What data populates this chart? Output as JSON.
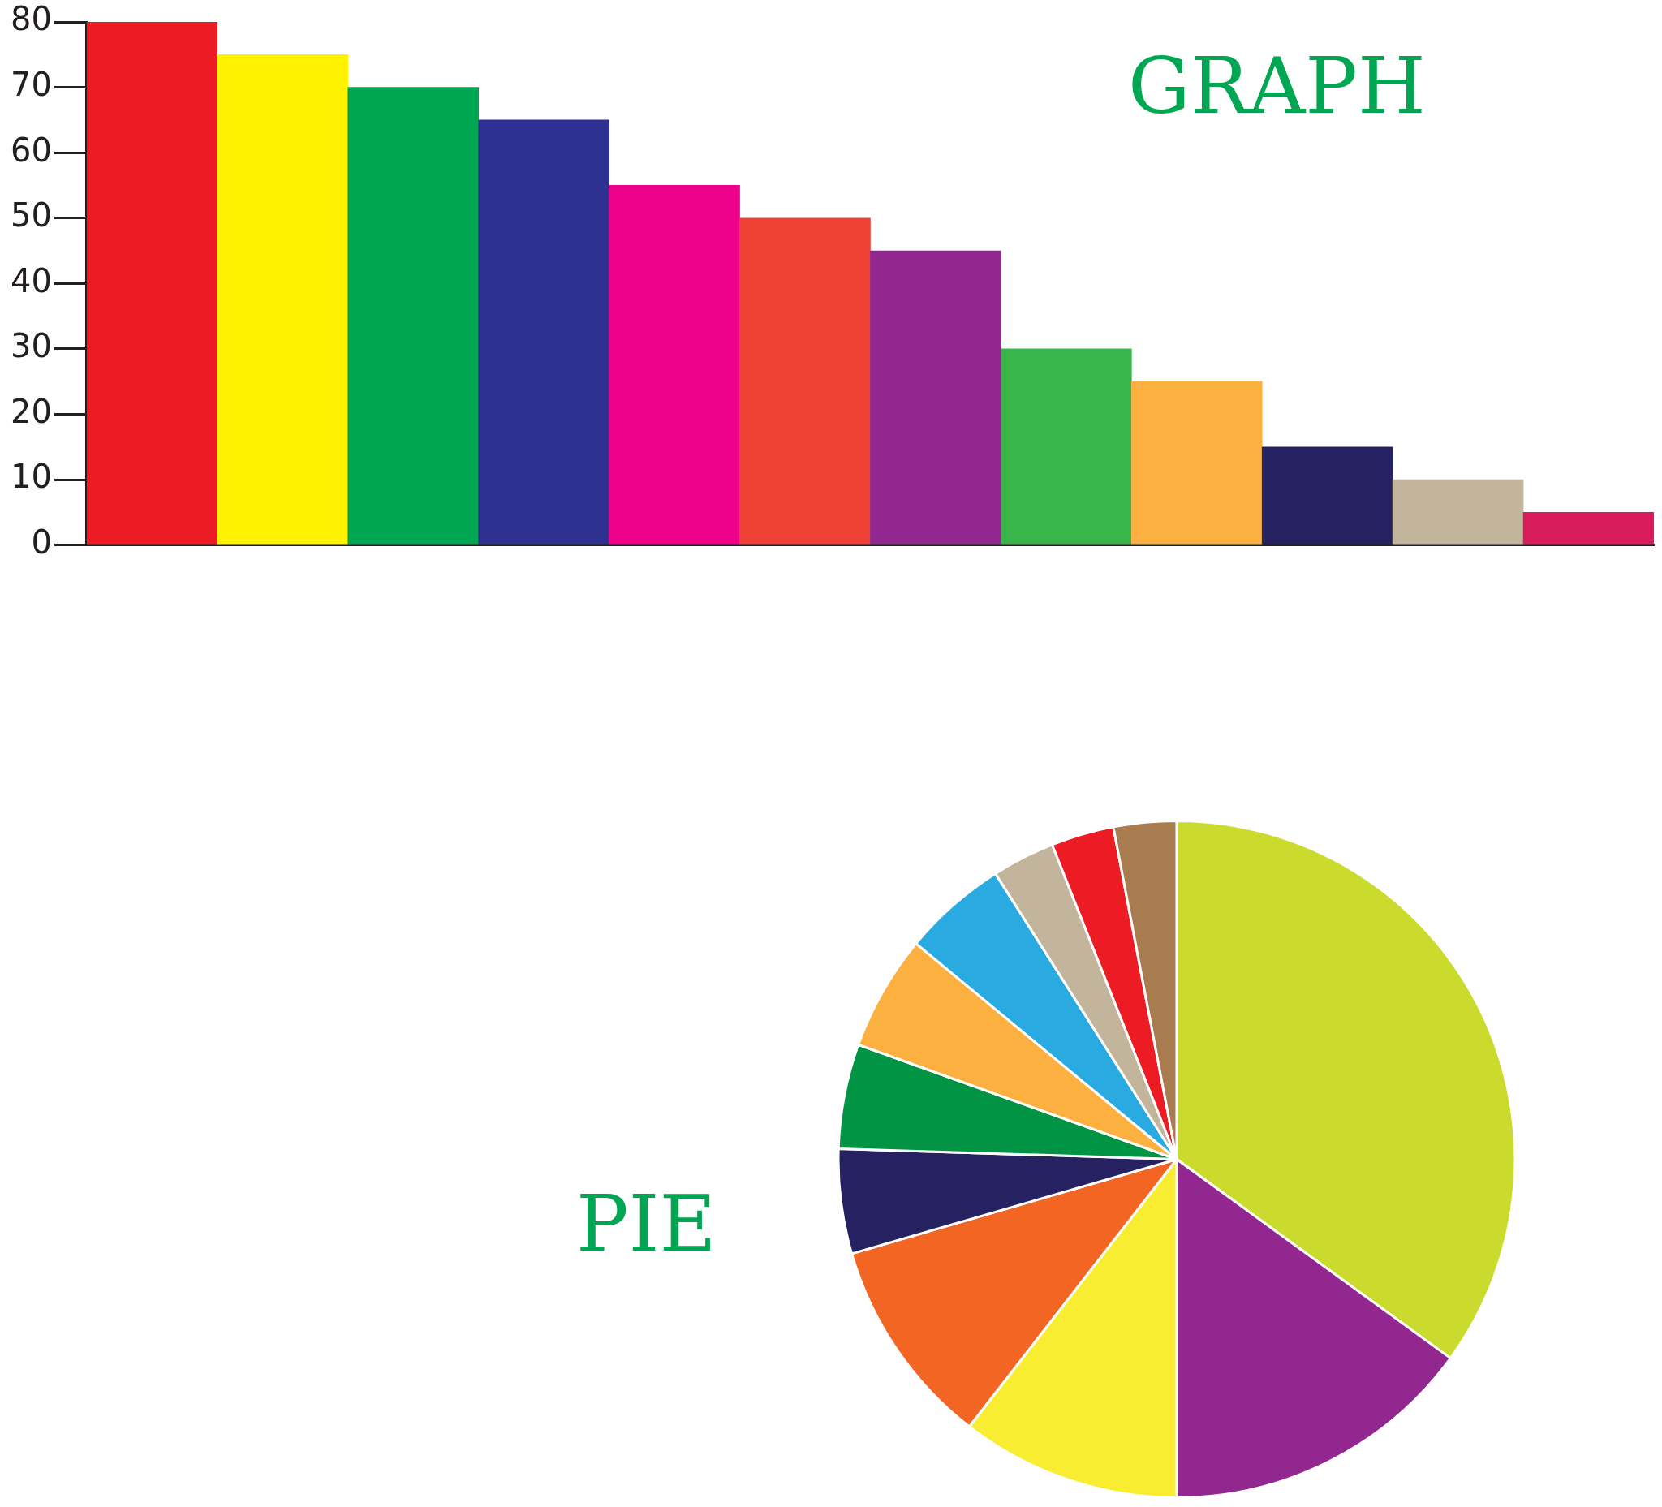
{
  "chart_data": [
    {
      "type": "bar",
      "title": "GRAPH",
      "categories": [
        null,
        null,
        null,
        null,
        null,
        null,
        null,
        null,
        null,
        null,
        null,
        null
      ],
      "values": [
        80,
        75,
        70,
        65,
        55,
        50,
        45,
        30,
        25,
        15,
        10,
        5
      ],
      "colors": [
        "#ed1c24",
        "#fff200",
        "#00a651",
        "#2e3192",
        "#ec008c",
        "#ef4136",
        "#92278f",
        "#39b54a",
        "#fbb040",
        "#262262",
        "#c2b59b",
        "#da1c5c"
      ],
      "ylim": [
        0,
        80
      ],
      "yticks": [
        0,
        10,
        20,
        30,
        40,
        50,
        60,
        70,
        80
      ]
    },
    {
      "type": "pie",
      "title": "PIE",
      "categories": [
        null,
        null,
        null,
        null,
        null,
        null,
        null,
        null,
        null,
        null,
        null
      ],
      "values": [
        35,
        15,
        10.5,
        10,
        5,
        5,
        5.5,
        5,
        3,
        3,
        3
      ],
      "colors": [
        "#cbdb2e",
        "#92278f",
        "#f9ed32",
        "#f26522",
        "#262262",
        "#009444",
        "#fbb040",
        "#29abe2",
        "#c2b59b",
        "#ed1c24",
        "#a97c50"
      ]
    }
  ]
}
